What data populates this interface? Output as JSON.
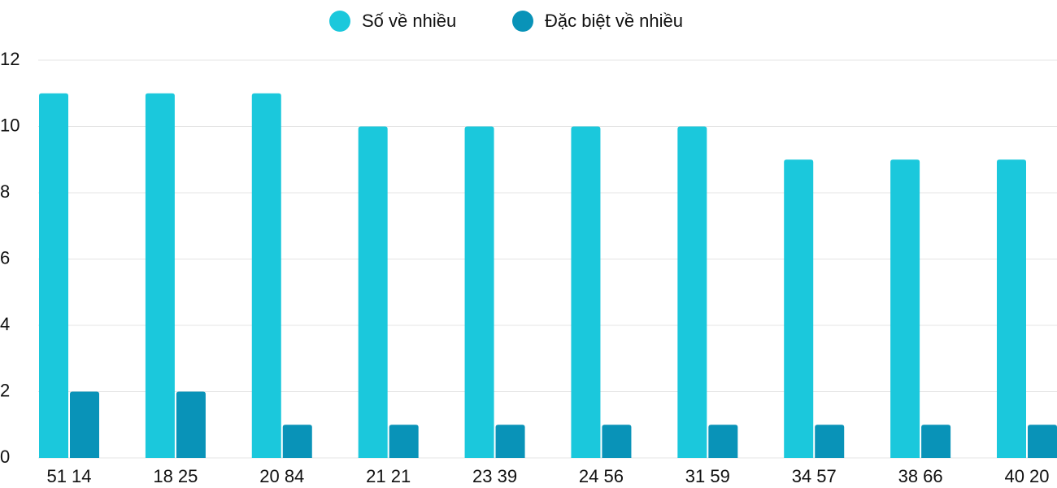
{
  "chart_data": {
    "type": "bar",
    "categories": [
      "51 14",
      "18 25",
      "20 84",
      "21 21",
      "23 39",
      "24 56",
      "31 59",
      "34 57",
      "38 66",
      "40 20"
    ],
    "series": [
      {
        "name": "Số về nhiều",
        "color": "#1bc8dc",
        "values": [
          11,
          11,
          11,
          10,
          10,
          10,
          10,
          9,
          9,
          9
        ]
      },
      {
        "name": "Đặc biệt về nhiều",
        "color": "#0993b8",
        "values": [
          2,
          2,
          1,
          1,
          1,
          1,
          1,
          1,
          1,
          1
        ]
      }
    ],
    "ylim": [
      0,
      12
    ],
    "yticks": [
      0,
      2,
      4,
      6,
      8,
      10,
      12
    ],
    "grid": true,
    "legend": "top"
  }
}
